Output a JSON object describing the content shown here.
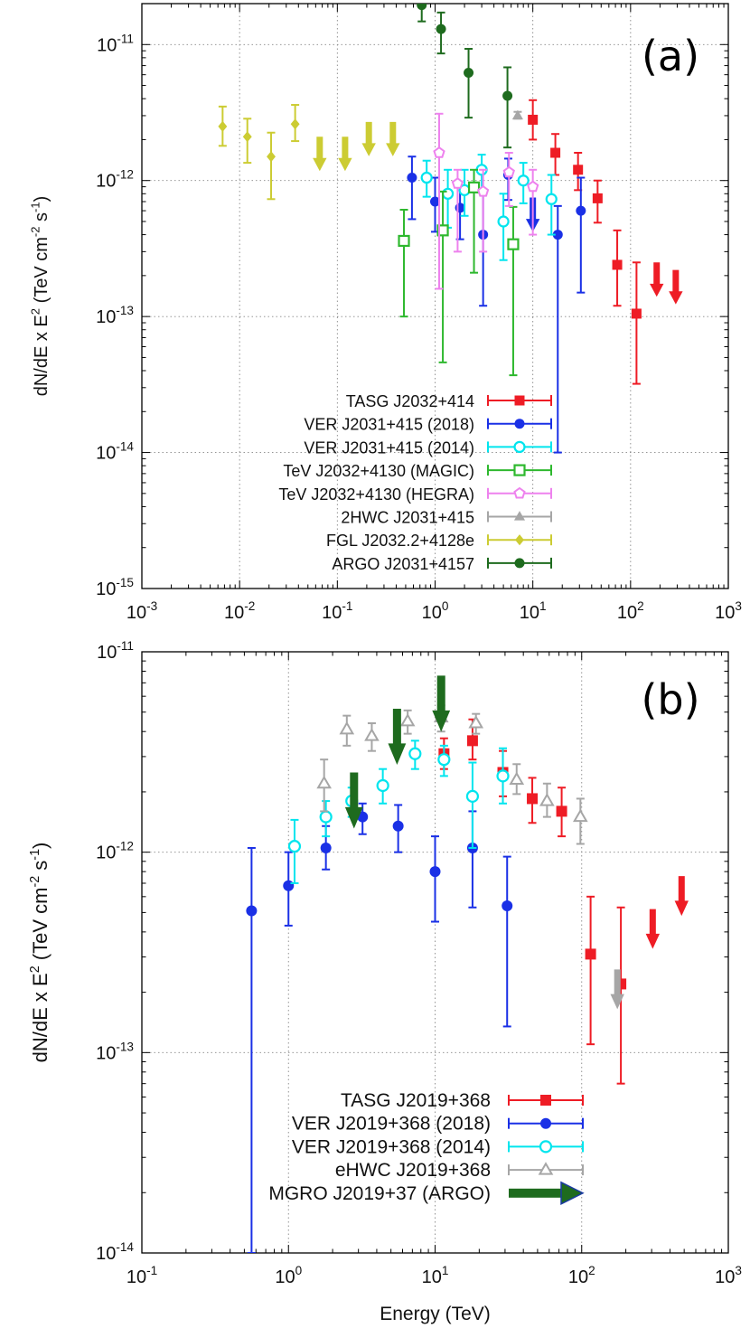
{
  "chart_data": [
    {
      "type": "scatter",
      "panel_label": "(a)",
      "xlabel": "",
      "ylabel": "dN/dE x E^2 (TeV cm^-2 s^-1)",
      "xscale": "log",
      "yscale": "log",
      "xlim": [
        0.001,
        1000
      ],
      "ylim": [
        1e-15,
        2e-11
      ],
      "x_ticks": [
        0.001,
        0.01,
        0.1,
        1,
        10,
        100,
        1000
      ],
      "y_ticks": [
        1e-15,
        1e-14,
        1e-13,
        1e-12,
        1e-11
      ],
      "grid": true,
      "legend_position": "bottom-center",
      "series": [
        {
          "name": "TASG J2032+414",
          "color": "#ee1c25",
          "marker": "square-filled",
          "points": [
            [
              10,
              2.8e-12,
              2e-12,
              3.9e-12
            ],
            [
              17,
              1.6e-12,
              1.1e-12,
              2.2e-12
            ],
            [
              29,
              1.2e-12,
              8.5e-13,
              1.6e-12
            ],
            [
              46,
              7.4e-13,
              4.9e-13,
              1e-12
            ],
            [
              73,
              2.4e-13,
              1.2e-13,
              4.3e-13
            ],
            [
              115,
              1.05e-13,
              3.2e-14,
              2.5e-13
            ]
          ],
          "upper_limits": [
            [
              185,
              2.5e-13
            ],
            [
              290,
              2.2e-13
            ]
          ]
        },
        {
          "name": "VER J2031+415 (2018)",
          "color": "#1a30e6",
          "marker": "circle-filled",
          "points": [
            [
              0.58,
              1.05e-12,
              5.2e-13,
              1.5e-12
            ],
            [
              1.0,
              7e-13,
              4.2e-13,
              1.05e-12
            ],
            [
              1.8,
              6.3e-13,
              3.7e-13,
              9.2e-13
            ],
            [
              3.1,
              4e-13,
              1.2e-13,
              8.5e-13
            ],
            [
              5.6,
              1.1e-12,
              7.2e-13,
              1.45e-12
            ],
            [
              18,
              4e-13,
              1e-14,
              6.5e-13
            ],
            [
              31,
              6e-13,
              1.5e-13,
              1.05e-12
            ]
          ],
          "upper_limits": [
            [
              10,
              7.5e-13
            ]
          ]
        },
        {
          "name": "VER J2031+415 (2014)",
          "color": "#00e5ee",
          "marker": "circle-open",
          "points": [
            [
              0.82,
              1.05e-12,
              7.6e-13,
              1.4e-12
            ],
            [
              1.35,
              8e-13,
              4.5e-13,
              1.2e-12
            ],
            [
              2.0,
              8.5e-13,
              5.5e-13,
              1.2e-12
            ],
            [
              3.0,
              1.2e-12,
              8.5e-13,
              1.55e-12
            ],
            [
              5.0,
              5e-13,
              2.6e-13,
              8e-13
            ],
            [
              8.0,
              1e-12,
              6.8e-13,
              1.35e-12
            ],
            [
              15.5,
              7.3e-13,
              4e-13,
              1.1e-12
            ]
          ],
          "upper_limits": []
        },
        {
          "name": "TeV J2032+4130 (MAGIC)",
          "color": "#2eb82e",
          "marker": "square-open",
          "points": [
            [
              0.48,
              3.6e-13,
              1e-13,
              6.1e-13
            ],
            [
              1.2,
              4.3e-13,
              4.6e-14,
              8.3e-13
            ],
            [
              2.5,
              8.9e-13,
              2.1e-13,
              1.2e-12
            ],
            [
              6.3,
              3.4e-13,
              3.7e-14,
              6.4e-13
            ]
          ],
          "upper_limits": []
        },
        {
          "name": "TeV J2032+4130 (HEGRA)",
          "color": "#ee82ee",
          "marker": "pentagon-open",
          "points": [
            [
              1.1,
              1.6e-12,
              1.6e-13,
              3.1e-12
            ],
            [
              1.7,
              9.5e-13,
              3e-13,
              1.2e-12
            ],
            [
              3.1,
              8.3e-13,
              3e-13,
              1.2e-12
            ],
            [
              5.7,
              1.15e-12,
              6.5e-13,
              1.6e-12
            ],
            [
              10,
              9e-13,
              4e-13,
              1.2e-12
            ]
          ],
          "upper_limits": []
        },
        {
          "name": "2HWC J2031+415",
          "color": "#a6a6a6",
          "marker": "triangle-filled",
          "points": [
            [
              7,
              3e-12,
              2.85e-12,
              3.2e-12
            ]
          ],
          "upper_limits": []
        },
        {
          "name": "FGL J2032.2+4128e",
          "color": "#cccc33",
          "marker": "diamond-filled",
          "points": [
            [
              0.0067,
              2.5e-12,
              1.8e-12,
              3.5e-12
            ],
            [
              0.012,
              2.1e-12,
              1.35e-12,
              2.85e-12
            ],
            [
              0.021,
              1.5e-12,
              7.3e-13,
              2.25e-12
            ],
            [
              0.037,
              2.6e-12,
              1.95e-12,
              3.6e-12
            ]
          ],
          "upper_limits": [
            [
              0.066,
              2.1e-12
            ],
            [
              0.12,
              2.1e-12
            ],
            [
              0.21,
              2.7e-12
            ],
            [
              0.37,
              2.7e-12
            ]
          ]
        },
        {
          "name": "ARGO J2031+4157",
          "color": "#1e6b1e",
          "marker": "circle-filled",
          "points": [
            [
              0.73,
              1.95e-11,
              1.48e-11,
              2.52e-11
            ],
            [
              1.15,
              1.3e-11,
              8.6e-12,
              1.72e-11
            ],
            [
              2.2,
              6.2e-12,
              2.9e-12,
              9.3e-12
            ],
            [
              5.5,
              4.2e-12,
              1.75e-12,
              6.8e-12
            ]
          ],
          "upper_limits": []
        }
      ]
    },
    {
      "type": "scatter",
      "panel_label": "(b)",
      "xlabel": "Energy (TeV)",
      "ylabel": "dN/dE x E^2 (TeV cm^-2 s^-1)",
      "xscale": "log",
      "yscale": "log",
      "xlim": [
        0.1,
        1000
      ],
      "ylim": [
        1e-14,
        1e-11
      ],
      "x_ticks": [
        0.1,
        1,
        10,
        100,
        1000
      ],
      "y_ticks": [
        1e-14,
        1e-13,
        1e-12,
        1e-11
      ],
      "grid": true,
      "legend_position": "bottom-center",
      "series": [
        {
          "name": "TASG J2019+368",
          "color": "#ee1c25",
          "marker": "square-filled",
          "points": [
            [
              11.5,
              3.1e-12,
              2.6e-12,
              3.7e-12
            ],
            [
              18,
              3.6e-12,
              2.9e-12,
              4.6e-12
            ],
            [
              29,
              2.5e-12,
              1.9e-12,
              3.2e-12
            ],
            [
              46,
              1.85e-12,
              1.4e-12,
              2.35e-12
            ],
            [
              73,
              1.6e-12,
              1.2e-12,
              2.1e-12
            ],
            [
              115,
              3.1e-13,
              1.1e-13,
              6e-13
            ],
            [
              185,
              2.2e-13,
              7e-14,
              5.3e-13
            ]
          ],
          "upper_limits": [
            [
              305,
              5.2e-13
            ],
            [
              480,
              7.6e-13
            ]
          ]
        },
        {
          "name": "VER J2019+368 (2018)",
          "color": "#1a30e6",
          "marker": "circle-filled",
          "points": [
            [
              0.56,
              5.1e-13,
              1e-14,
              1.05e-12
            ],
            [
              1.0,
              6.8e-13,
              4.3e-13,
              1e-12
            ],
            [
              1.8,
              1.05e-12,
              8.2e-13,
              1.35e-12
            ],
            [
              3.2,
              1.5e-12,
              1.23e-12,
              1.75e-12
            ],
            [
              5.6,
              1.35e-12,
              1e-12,
              1.72e-12
            ],
            [
              10,
              8e-13,
              4.5e-13,
              1.2e-12
            ],
            [
              18,
              1.05e-12,
              5.3e-13,
              1.6e-12
            ],
            [
              31,
              5.4e-13,
              1.35e-13,
              9.5e-13
            ]
          ],
          "upper_limits": []
        },
        {
          "name": "VER J2019+368 (2014)",
          "color": "#00e5ee",
          "marker": "circle-open",
          "points": [
            [
              1.1,
              1.07e-12,
              7e-13,
              1.45e-12
            ],
            [
              1.8,
              1.5e-12,
              1.2e-12,
              1.8e-12
            ],
            [
              2.7,
              1.8e-12,
              1.5e-12,
              2.1e-12
            ],
            [
              4.4,
              2.15e-12,
              1.75e-12,
              2.6e-12
            ],
            [
              7.3,
              3.1e-12,
              2.6e-12,
              3.6e-12
            ],
            [
              11.5,
              2.9e-12,
              2.4e-12,
              3.4e-12
            ],
            [
              18,
              1.9e-12,
              1.05e-12,
              2.8e-12
            ],
            [
              29,
              2.4e-12,
              1.75e-12,
              3.3e-12
            ]
          ],
          "upper_limits": []
        },
        {
          "name": "eHWC J2019+368",
          "color": "#a6a6a6",
          "marker": "triangle-open",
          "points": [
            [
              1.75,
              2.2e-12,
              1.6e-12,
              2.9e-12
            ],
            [
              2.5,
              4.1e-12,
              3.4e-12,
              4.8e-12
            ],
            [
              3.7,
              3.8e-12,
              3.2e-12,
              4.4e-12
            ],
            [
              6.5,
              4.5e-12,
              3.9e-12,
              5.1e-12
            ],
            [
              11,
              4.7e-12,
              4e-12,
              5.4e-12
            ],
            [
              19,
              4.4e-12,
              3.9e-12,
              4.9e-12
            ],
            [
              36,
              2.3e-12,
              1.95e-12,
              2.75e-12
            ],
            [
              58,
              1.8e-12,
              1.5e-12,
              2.2e-12
            ],
            [
              98,
              1.5e-12,
              1.1e-12,
              1.85e-12
            ]
          ],
          "upper_limits": [
            [
              175,
              2.6e-13
            ]
          ]
        },
        {
          "name": "MGRO J2019+37 (ARGO)",
          "color": "#1e6b1e",
          "marker": "arrow",
          "points": [],
          "upper_limits": [
            [
              2.8,
              2.5e-12
            ],
            [
              5.5,
              5.2e-12
            ],
            [
              11,
              7.6e-12
            ]
          ]
        }
      ]
    }
  ]
}
